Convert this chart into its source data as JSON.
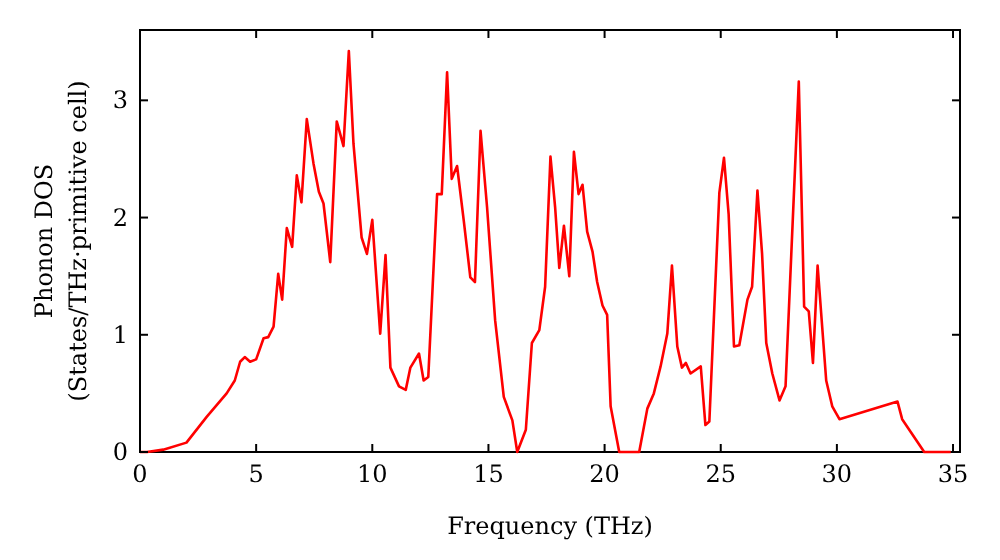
{
  "chart_data": {
    "type": "line",
    "xlabel": "Frequency (THz)",
    "ylabel": "Phonon DOS\n(States/THz·primitive cell)",
    "xlim": [
      0,
      35.3
    ],
    "ylim": [
      0,
      3.6
    ],
    "xticks": [
      0,
      5,
      10,
      15,
      20,
      25,
      30,
      35
    ],
    "yticks": [
      0,
      1,
      2,
      3
    ],
    "grid": false,
    "marker": "none",
    "line_style": "solid",
    "series": [
      {
        "color": "#ff0000",
        "x": [
          0,
          0.3,
          1,
          2,
          2.87,
          3.73,
          4.08,
          4.31,
          4.51,
          4.74,
          5.0,
          5.32,
          5.52,
          5.75,
          5.95,
          6.12,
          6.32,
          6.55,
          6.75,
          6.95,
          7.18,
          7.47,
          7.7,
          7.9,
          8.19,
          8.47,
          8.76,
          8.99,
          9.19,
          9.54,
          9.77,
          10.0,
          10.34,
          10.57,
          10.78,
          11.15,
          11.44,
          11.64,
          12.01,
          12.21,
          12.41,
          12.79,
          12.99,
          13.22,
          13.42,
          13.65,
          13.94,
          14.22,
          14.42,
          14.66,
          14.94,
          15.29,
          15.66,
          16.03,
          16.24,
          16.61,
          16.87,
          17.19,
          17.44,
          17.67,
          17.87,
          18.05,
          18.25,
          18.48,
          18.68,
          18.88,
          19.05,
          19.25,
          19.48,
          19.68,
          19.91,
          20.11,
          20.26,
          20.63,
          21.49,
          21.84,
          22.12,
          22.41,
          22.7,
          22.9,
          23.13,
          23.33,
          23.5,
          23.7,
          24.14,
          24.34,
          24.51,
          24.94,
          25.14,
          25.34,
          25.57,
          25.8,
          26.15,
          26.35,
          26.58,
          26.78,
          26.96,
          27.22,
          27.53,
          27.79,
          28.36,
          28.59,
          28.79,
          28.97,
          29.17,
          29.54,
          29.8,
          30.11,
          32.61,
          32.81,
          33.76,
          34.9
        ],
        "values": [
          0,
          0,
          0.02,
          0.08,
          0.3,
          0.5,
          0.61,
          0.77,
          0.81,
          0.77,
          0.79,
          0.97,
          0.98,
          1.07,
          1.52,
          1.3,
          1.91,
          1.75,
          2.36,
          2.13,
          2.84,
          2.46,
          2.22,
          2.12,
          1.62,
          2.82,
          2.61,
          3.42,
          2.63,
          1.83,
          1.69,
          1.98,
          1.01,
          1.68,
          0.72,
          0.56,
          0.53,
          0.72,
          0.84,
          0.61,
          0.64,
          2.2,
          2.2,
          3.24,
          2.33,
          2.44,
          1.97,
          1.49,
          1.45,
          2.74,
          2.09,
          1.12,
          0.47,
          0.27,
          0,
          0.19,
          0.93,
          1.04,
          1.41,
          2.52,
          2.09,
          1.57,
          1.93,
          1.5,
          2.56,
          2.2,
          2.28,
          1.88,
          1.71,
          1.45,
          1.25,
          1.17,
          0.39,
          0,
          0,
          0.37,
          0.5,
          0.73,
          1.01,
          1.59,
          0.9,
          0.72,
          0.76,
          0.67,
          0.73,
          0.23,
          0.26,
          2.21,
          2.51,
          2.03,
          0.9,
          0.91,
          1.3,
          1.41,
          2.23,
          1.69,
          0.93,
          0.67,
          0.44,
          0.56,
          3.16,
          1.24,
          1.2,
          0.76,
          1.59,
          0.61,
          0.39,
          0.28,
          0.43,
          0.28,
          0,
          0
        ]
      }
    ]
  }
}
